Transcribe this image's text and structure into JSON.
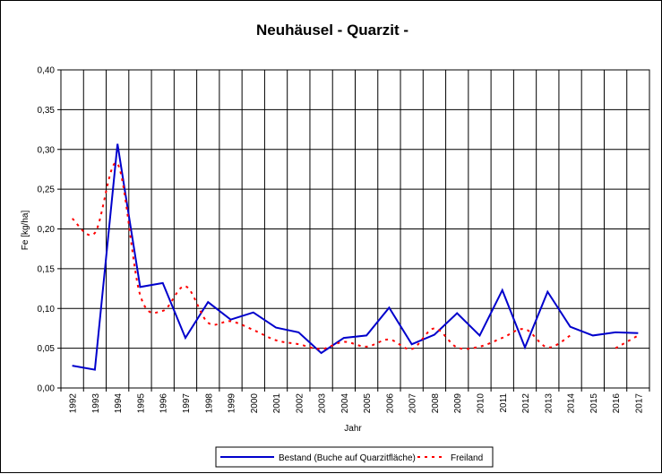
{
  "chart_data": {
    "type": "line",
    "title": "Neuhäusel - Quarzit -",
    "xlabel": "Jahr",
    "ylabel": "Fe [kg/ha]",
    "ylim": [
      0,
      0.4
    ],
    "yticks": [
      "0,00",
      "0,05",
      "0,10",
      "0,15",
      "0,20",
      "0,25",
      "0,30",
      "0,35",
      "0,40"
    ],
    "x": [
      "1992",
      "1993",
      "1994",
      "1995",
      "1996",
      "1997",
      "1998",
      "1999",
      "2000",
      "2001",
      "2002",
      "2003",
      "2004",
      "2005",
      "2006",
      "2007",
      "2008",
      "2009",
      "2010",
      "2011",
      "2012",
      "2013",
      "2014",
      "2015",
      "2016",
      "2017"
    ],
    "grid": true,
    "legend_position": "bottom",
    "series": [
      {
        "name": "Bestand (Buche auf Quarzitfläche)",
        "color": "#0000cc",
        "style": "solid",
        "values": [
          0.028,
          0.023,
          0.307,
          0.127,
          0.132,
          0.063,
          0.108,
          0.086,
          0.095,
          0.076,
          0.07,
          0.044,
          0.063,
          0.066,
          0.101,
          0.055,
          0.067,
          0.094,
          0.066,
          0.123,
          0.051,
          0.121,
          0.077,
          0.066,
          0.07,
          0.069
        ]
      },
      {
        "name": "Freiland",
        "color": "#ff0000",
        "style": "dotted",
        "values": [
          0.213,
          0.195,
          0.282,
          0.117,
          0.097,
          0.128,
          0.082,
          0.084,
          0.073,
          0.06,
          0.055,
          0.049,
          0.058,
          0.052,
          0.061,
          0.049,
          0.075,
          0.051,
          0.052,
          0.063,
          0.074,
          0.051,
          0.066,
          null,
          0.05,
          0.066
        ]
      }
    ]
  }
}
